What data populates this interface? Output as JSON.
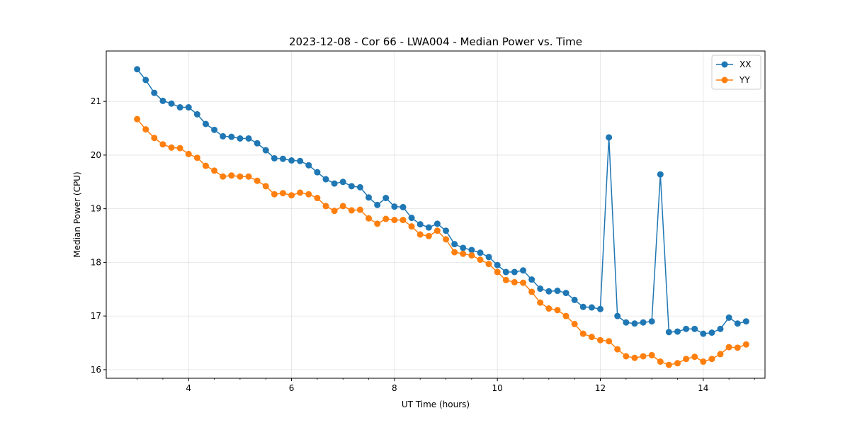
{
  "chart_data": {
    "type": "line",
    "title": "2023-12-08 - Cor 66 - LWA004 - Median Power vs. Time",
    "xlabel": "UT Time (hours)",
    "ylabel": "Median Power (CPU)",
    "xlim": [
      2.4,
      15.2
    ],
    "ylim": [
      15.84,
      21.94
    ],
    "xticks": [
      4,
      6,
      8,
      10,
      12,
      14
    ],
    "xtick_labels": [
      "4",
      "6",
      "8",
      "10",
      "12",
      "14"
    ],
    "yticks": [
      16,
      17,
      18,
      19,
      20,
      21
    ],
    "ytick_labels": [
      "16",
      "17",
      "18",
      "19",
      "20",
      "21"
    ],
    "grid": true,
    "legend_position": "top-right",
    "x": [
      3.0,
      3.167,
      3.333,
      3.5,
      3.667,
      3.833,
      4.0,
      4.167,
      4.333,
      4.5,
      4.667,
      4.833,
      5.0,
      5.167,
      5.333,
      5.5,
      5.667,
      5.833,
      6.0,
      6.167,
      6.333,
      6.5,
      6.667,
      6.833,
      7.0,
      7.167,
      7.333,
      7.5,
      7.667,
      7.833,
      8.0,
      8.167,
      8.333,
      8.5,
      8.667,
      8.833,
      9.0,
      9.167,
      9.333,
      9.5,
      9.667,
      9.833,
      10.0,
      10.167,
      10.333,
      10.5,
      10.667,
      10.833,
      11.0,
      11.167,
      11.333,
      11.5,
      11.667,
      11.833,
      12.0,
      12.167,
      12.333,
      12.5,
      12.667,
      12.833,
      13.0,
      13.167,
      13.333,
      13.5,
      13.667,
      13.833,
      14.0,
      14.167,
      14.333,
      14.5,
      14.667,
      14.833
    ],
    "series": [
      {
        "name": "XX",
        "color": "#1f77b4",
        "values": [
          21.6,
          21.4,
          21.16,
          21.01,
          20.96,
          20.89,
          20.89,
          20.76,
          20.58,
          20.47,
          20.35,
          20.34,
          20.31,
          20.31,
          20.22,
          20.09,
          19.94,
          19.93,
          19.9,
          19.89,
          19.81,
          19.68,
          19.55,
          19.47,
          19.5,
          19.42,
          19.4,
          19.21,
          19.07,
          19.2,
          19.04,
          19.03,
          18.83,
          18.71,
          18.65,
          18.72,
          18.59,
          18.34,
          18.27,
          18.23,
          18.18,
          18.1,
          17.95,
          17.82,
          17.82,
          17.85,
          17.68,
          17.51,
          17.46,
          17.47,
          17.43,
          17.3,
          17.17,
          17.16,
          17.13,
          20.33,
          17.0,
          16.88,
          16.86,
          16.88,
          16.9,
          19.64,
          16.7,
          16.71,
          16.76,
          16.76,
          16.67,
          16.69,
          16.76,
          16.97,
          16.86,
          16.9
        ]
      },
      {
        "name": "YY",
        "color": "#ff7f0e",
        "values": [
          20.67,
          20.48,
          20.32,
          20.2,
          20.14,
          20.13,
          20.02,
          19.95,
          19.8,
          19.71,
          19.6,
          19.62,
          19.6,
          19.6,
          19.52,
          19.42,
          19.27,
          19.29,
          19.25,
          19.3,
          19.27,
          19.2,
          19.05,
          18.96,
          19.05,
          18.97,
          18.98,
          18.82,
          18.72,
          18.81,
          18.79,
          18.79,
          18.67,
          18.52,
          18.49,
          18.59,
          18.43,
          18.19,
          18.16,
          18.13,
          18.05,
          17.97,
          17.82,
          17.67,
          17.63,
          17.62,
          17.45,
          17.25,
          17.14,
          17.11,
          17.0,
          16.85,
          16.67,
          16.61,
          16.55,
          16.53,
          16.38,
          16.25,
          16.22,
          16.25,
          16.27,
          16.15,
          16.09,
          16.12,
          16.2,
          16.24,
          16.15,
          16.2,
          16.29,
          16.42,
          16.41,
          16.47
        ]
      }
    ]
  }
}
